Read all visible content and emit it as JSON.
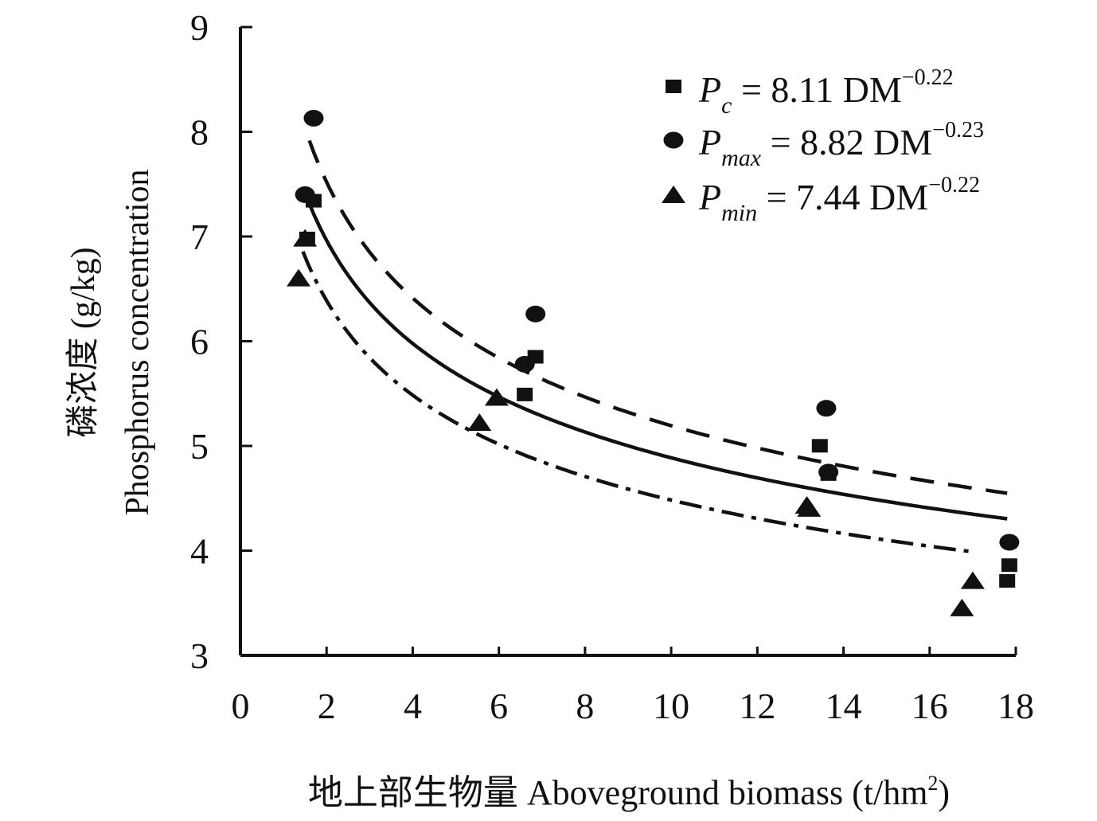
{
  "chart_data": {
    "type": "scatter",
    "xlabel": "地上部生物量 Aboveground biomass (t/hm",
    "xlabel_sup": "2",
    "xlabel_end": ")",
    "ylabel_cn": "磷浓度 (g/kg)",
    "ylabel_en": "Phosphorus concentration",
    "xlim": [
      0,
      18
    ],
    "ylim": [
      3,
      9
    ],
    "x_ticks": [
      0,
      2,
      4,
      6,
      8,
      10,
      12,
      14,
      16,
      18
    ],
    "y_ticks": [
      3,
      4,
      5,
      6,
      7,
      8,
      9
    ],
    "grid": false,
    "legend_position": "top-right",
    "series": [
      {
        "key": "pc",
        "marker": "square",
        "curve": "solid",
        "legend": {
          "sym": "P",
          "sub": "c",
          "eq": " = 8.11 DM",
          "exp": "−0.22"
        },
        "a": 8.11,
        "b": -0.22,
        "fit_range": [
          1.6,
          17.8
        ],
        "x": [
          1.55,
          1.7,
          6.6,
          6.85,
          13.45,
          13.65,
          17.8,
          17.85
        ],
        "y": [
          6.97,
          7.33,
          5.48,
          5.84,
          4.99,
          4.72,
          3.7,
          3.85
        ]
      },
      {
        "key": "pmax",
        "marker": "circle",
        "curve": "dashed",
        "legend": {
          "sym": "P",
          "sub": "max",
          "eq": " = 8.82 DM",
          "exp": "−0.23"
        },
        "a": 8.82,
        "b": -0.23,
        "fit_range": [
          1.6,
          17.8
        ],
        "x": [
          1.5,
          1.7,
          6.6,
          6.85,
          13.6,
          13.65,
          17.85
        ],
        "y": [
          7.4,
          8.13,
          5.78,
          6.26,
          5.36,
          4.75,
          4.08
        ]
      },
      {
        "key": "pmin",
        "marker": "triangle",
        "curve": "dashdot",
        "legend": {
          "sym": "P",
          "sub": "min",
          "eq": " = 7.44 DM",
          "exp": "−0.22"
        },
        "a": 7.44,
        "b": -0.22,
        "fit_range": [
          1.45,
          17.0
        ],
        "x": [
          1.35,
          1.5,
          5.55,
          5.95,
          13.15,
          13.2,
          16.75,
          17.0
        ],
        "y": [
          6.6,
          6.98,
          5.22,
          5.46,
          4.43,
          4.4,
          3.45,
          3.71
        ]
      }
    ]
  }
}
